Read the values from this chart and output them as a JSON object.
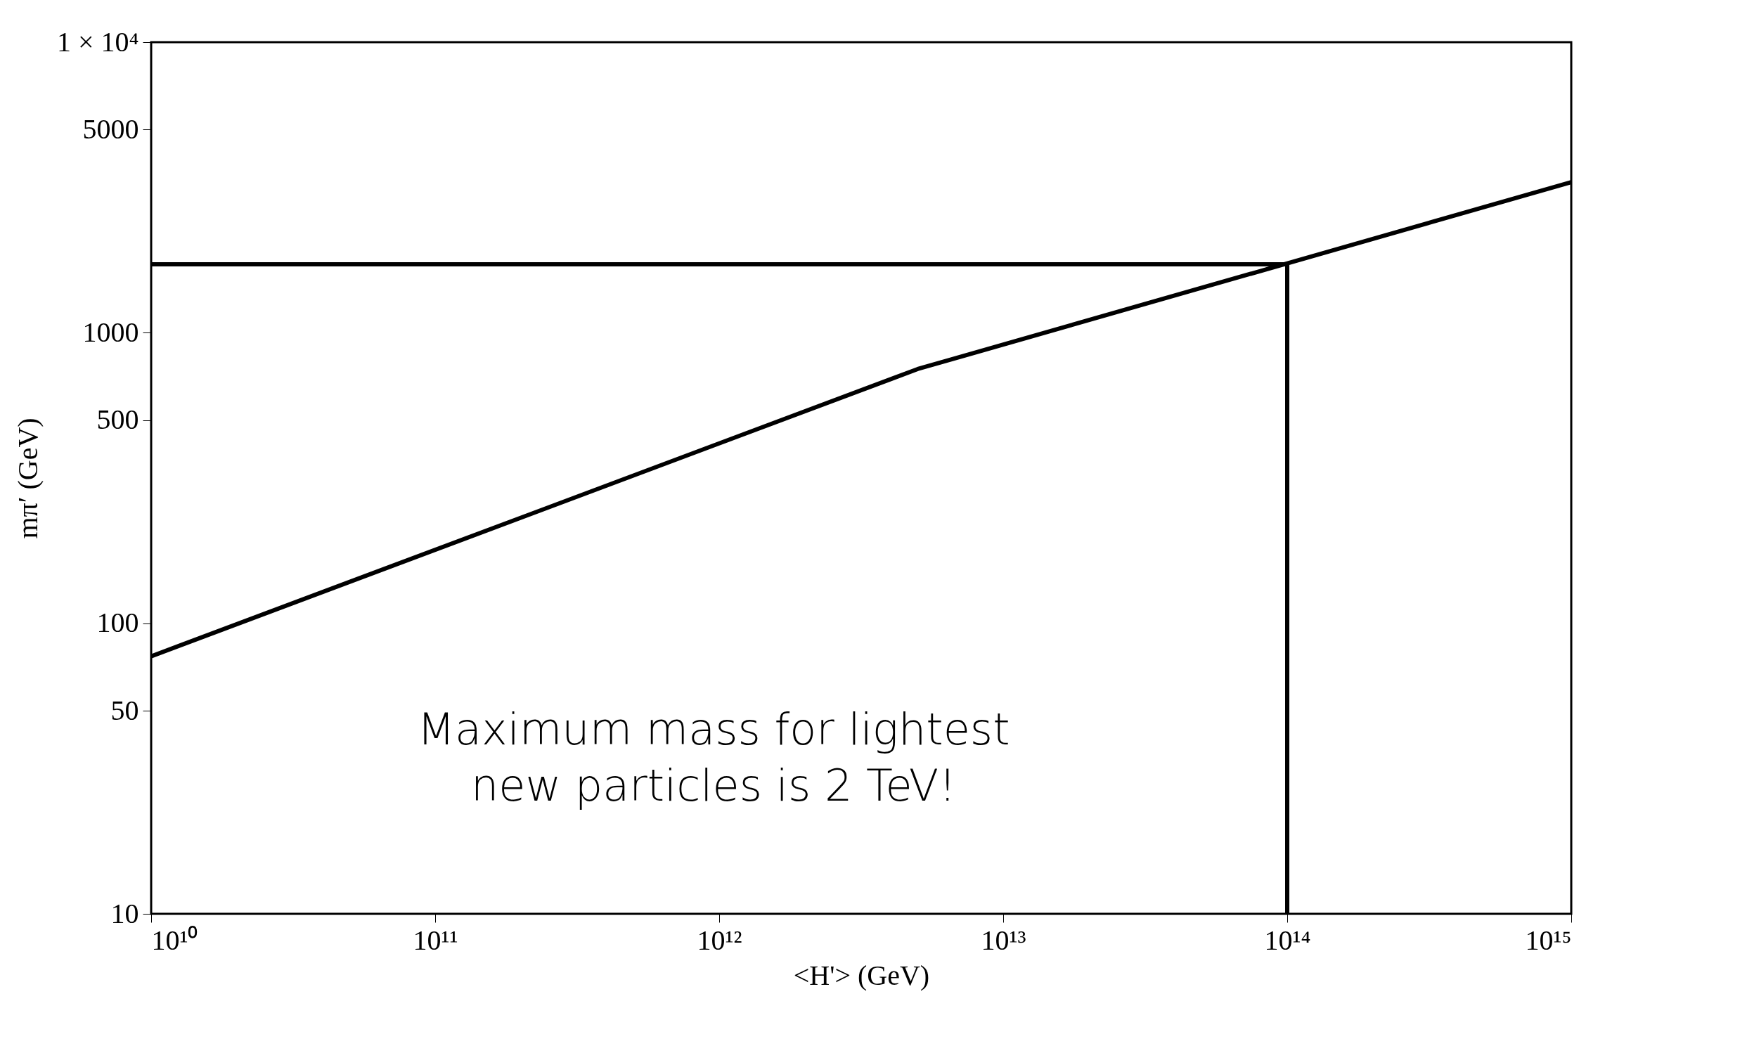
{
  "chart_data": {
    "type": "line",
    "xlabel": "<H'> (GeV)",
    "ylabel": "mπ′ (GeV)",
    "log": "xy",
    "grid": false,
    "marker": "none",
    "line_style": "solid",
    "xlim": [
      10000000000.0,
      1000000000000000.0
    ],
    "ylim": [
      10,
      10000
    ],
    "xticks": [
      {
        "value": 10000000000.0,
        "label": "10¹⁰"
      },
      {
        "value": 100000000000.0,
        "label": "10¹¹"
      },
      {
        "value": 1000000000000.0,
        "label": "10¹²"
      },
      {
        "value": 10000000000000.0,
        "label": "10¹³"
      },
      {
        "value": 100000000000000.0,
        "label": "10¹⁴"
      },
      {
        "value": 1000000000000000.0,
        "label": "10¹⁵"
      }
    ],
    "yticks": [
      10,
      50,
      100,
      500,
      1000,
      5000,
      {
        "value": 10000,
        "label": "1 × 10⁴"
      }
    ],
    "series": [
      {
        "color": "#000000",
        "x": [
          10000000000.0,
          5000000000000.0,
          1000000000000000.0
        ],
        "values": [
          77,
          750,
          3300
        ]
      },
      {
        "color": "#000000",
        "x": [
          10000000000.0,
          100000000000000.0,
          100000000000000.0
        ],
        "values": [
          1720,
          1720,
          10
        ]
      }
    ],
    "annotations": [
      "Maximum mass for lightest new particles is 2 TeV!"
    ]
  }
}
